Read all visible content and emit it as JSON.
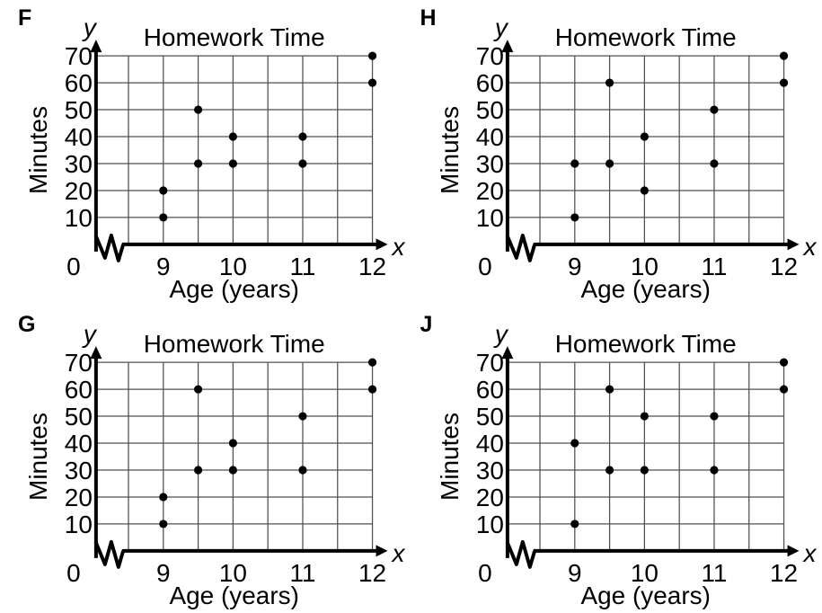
{
  "page": {
    "background": "#ffffff"
  },
  "colors": {
    "dot": "#000000",
    "axis": "#000000",
    "grid": "#4f4f4f",
    "text": "#000000"
  },
  "chart_data": [
    {
      "option": "F",
      "type": "scatter",
      "title": "Homework Time",
      "xlabel": "Age (years)",
      "ylabel": "Minutes",
      "x_axis_symbol": "x",
      "y_axis_symbol": "y",
      "origin_label": "0",
      "x_ticks": [
        9,
        10,
        11,
        12
      ],
      "y_ticks": [
        10,
        20,
        30,
        40,
        50,
        60,
        70
      ],
      "xlim": [
        8.5,
        12
      ],
      "ylim": [
        0,
        70
      ],
      "grid": true,
      "axis_break": true,
      "points": [
        [
          9,
          10
        ],
        [
          9,
          20
        ],
        [
          9.5,
          30
        ],
        [
          9.5,
          50
        ],
        [
          10,
          30
        ],
        [
          10,
          40
        ],
        [
          11,
          30
        ],
        [
          11,
          40
        ],
        [
          12,
          60
        ],
        [
          12,
          70
        ]
      ]
    },
    {
      "option": "H",
      "type": "scatter",
      "title": "Homework Time",
      "xlabel": "Age (years)",
      "ylabel": "Minutes",
      "x_axis_symbol": "x",
      "y_axis_symbol": "y",
      "origin_label": "0",
      "x_ticks": [
        9,
        10,
        11,
        12
      ],
      "y_ticks": [
        10,
        20,
        30,
        40,
        50,
        60,
        70
      ],
      "xlim": [
        8.5,
        12
      ],
      "ylim": [
        0,
        70
      ],
      "grid": true,
      "axis_break": true,
      "points": [
        [
          9,
          10
        ],
        [
          9,
          30
        ],
        [
          9.5,
          30
        ],
        [
          9.5,
          60
        ],
        [
          10,
          20
        ],
        [
          10,
          40
        ],
        [
          11,
          30
        ],
        [
          11,
          50
        ],
        [
          12,
          60
        ],
        [
          12,
          70
        ]
      ]
    },
    {
      "option": "G",
      "type": "scatter",
      "title": "Homework Time",
      "xlabel": "Age (years)",
      "ylabel": "Minutes",
      "x_axis_symbol": "x",
      "y_axis_symbol": "y",
      "origin_label": "0",
      "x_ticks": [
        9,
        10,
        11,
        12
      ],
      "y_ticks": [
        10,
        20,
        30,
        40,
        50,
        60,
        70
      ],
      "xlim": [
        8.5,
        12
      ],
      "ylim": [
        0,
        70
      ],
      "grid": true,
      "axis_break": true,
      "points": [
        [
          9,
          10
        ],
        [
          9,
          20
        ],
        [
          9.5,
          30
        ],
        [
          9.5,
          60
        ],
        [
          10,
          30
        ],
        [
          10,
          40
        ],
        [
          11,
          30
        ],
        [
          11,
          50
        ],
        [
          12,
          60
        ],
        [
          12,
          70
        ]
      ]
    },
    {
      "option": "J",
      "type": "scatter",
      "title": "Homework Time",
      "xlabel": "Age (years)",
      "ylabel": "Minutes",
      "x_axis_symbol": "x",
      "y_axis_symbol": "y",
      "origin_label": "0",
      "x_ticks": [
        9,
        10,
        11,
        12
      ],
      "y_ticks": [
        10,
        20,
        30,
        40,
        50,
        60,
        70
      ],
      "xlim": [
        8.5,
        12
      ],
      "ylim": [
        0,
        70
      ],
      "grid": true,
      "axis_break": true,
      "points": [
        [
          9,
          10
        ],
        [
          9,
          40
        ],
        [
          9.5,
          30
        ],
        [
          9.5,
          60
        ],
        [
          10,
          30
        ],
        [
          10,
          50
        ],
        [
          11,
          30
        ],
        [
          11,
          50
        ],
        [
          12,
          60
        ],
        [
          12,
          70
        ]
      ]
    }
  ]
}
